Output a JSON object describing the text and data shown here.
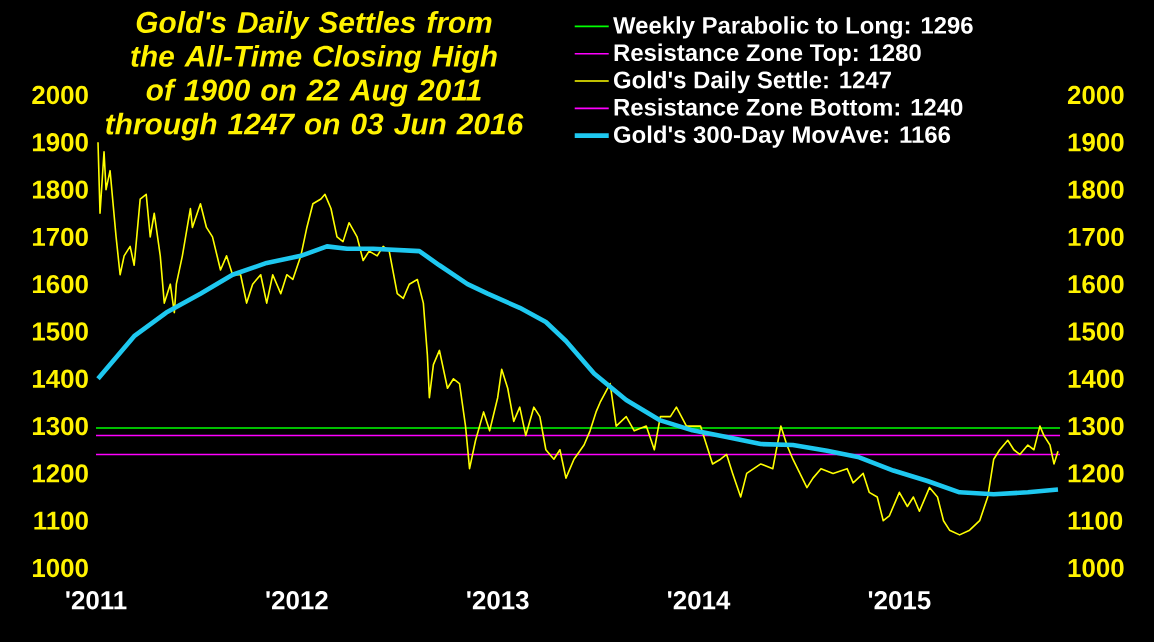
{
  "chart_data": {
    "type": "line",
    "title": "Gold's Daily Settles from the All-Time Closing High of 1900 on 22 Aug 2011 through 1247 on 03 Jun 2016",
    "xlim": [
      2011,
      2015.8
    ],
    "xticks": [
      {
        "value": 2011,
        "label": "'2011"
      },
      {
        "value": 2012,
        "label": "'2012"
      },
      {
        "value": 2013,
        "label": "'2013"
      },
      {
        "value": 2014,
        "label": "'2014"
      },
      {
        "value": 2015,
        "label": "'2015"
      }
    ],
    "ylim": [
      1000,
      2000
    ],
    "yticks": [
      1000,
      1100,
      1200,
      1300,
      1400,
      1500,
      1600,
      1700,
      1800,
      1900,
      2000
    ],
    "y2lim": [
      1000,
      2000
    ],
    "y2ticks": [
      1000,
      1100,
      1200,
      1300,
      1400,
      1500,
      1600,
      1700,
      1800,
      1900,
      2000
    ],
    "legend": "top right",
    "ref_lines": [
      {
        "axis": "y",
        "value": 1296,
        "label": "Weekly Parabolic to Long:  1296",
        "color": "#00ff00"
      },
      {
        "axis": "y",
        "value": 1280,
        "label": "Resistance Zone Top:  1280",
        "color": "#ff00ff"
      },
      {
        "axis": "y",
        "value": 1240,
        "label": "Resistance Zone Bottom:  1240",
        "color": "#ff00ff"
      }
    ],
    "series": [
      {
        "name": "Gold's Daily Settle:  1247",
        "color": "#ffff00",
        "x": [
          2011.01,
          2011.02,
          2011.04,
          2011.05,
          2011.07,
          2011.1,
          2011.12,
          2011.14,
          2011.17,
          2011.19,
          2011.22,
          2011.25,
          2011.27,
          2011.29,
          2011.32,
          2011.34,
          2011.37,
          2011.39,
          2011.4,
          2011.43,
          2011.47,
          2011.48,
          2011.52,
          2011.55,
          2011.58,
          2011.62,
          2011.65,
          2011.68,
          2011.72,
          2011.75,
          2011.78,
          2011.82,
          2011.85,
          2011.88,
          2011.92,
          2011.95,
          2011.98,
          2012.02,
          2012.05,
          2012.08,
          2012.12,
          2012.14,
          2012.17,
          2012.2,
          2012.23,
          2012.26,
          2012.3,
          2012.33,
          2012.36,
          2012.4,
          2012.43,
          2012.46,
          2012.5,
          2012.53,
          2012.56,
          2012.6,
          2012.63,
          2012.65,
          2012.66,
          2012.68,
          2012.71,
          2012.75,
          2012.78,
          2012.81,
          2012.84,
          2012.86,
          2012.89,
          2012.91,
          2012.93,
          2012.96,
          2013.0,
          2013.02,
          2013.05,
          2013.08,
          2013.11,
          2013.14,
          2013.18,
          2013.21,
          2013.24,
          2013.28,
          2013.31,
          2013.34,
          2013.38,
          2013.43,
          2013.46,
          2013.49,
          2013.51,
          2013.56,
          2013.59,
          2013.64,
          2013.68,
          2013.74,
          2013.78,
          2013.81,
          2013.86,
          2013.89,
          2013.94,
          2014.01,
          2014.04,
          2014.07,
          2014.11,
          2014.14,
          2014.17,
          2014.21,
          2014.24,
          2014.31,
          2014.37,
          2014.41,
          2014.44,
          2014.47,
          2014.54,
          2014.57,
          2014.61,
          2014.67,
          2014.74,
          2014.77,
          2014.82,
          2014.85,
          2014.89,
          2014.92,
          2014.95,
          2015.0,
          2015.04,
          2015.07,
          2015.1,
          2015.15,
          2015.19,
          2015.22,
          2015.25,
          2015.3,
          2015.35,
          2015.4,
          2015.44,
          2015.47,
          2015.5,
          2015.54,
          2015.57,
          2015.6,
          2015.64,
          2015.67,
          2015.7,
          2015.72,
          2015.75,
          2015.77,
          2015.79
        ],
        "values": [
          1900,
          1750,
          1880,
          1800,
          1840,
          1700,
          1620,
          1660,
          1680,
          1640,
          1780,
          1790,
          1700,
          1750,
          1660,
          1560,
          1600,
          1540,
          1600,
          1660,
          1760,
          1720,
          1770,
          1720,
          1700,
          1630,
          1660,
          1620,
          1620,
          1560,
          1600,
          1620,
          1560,
          1620,
          1580,
          1620,
          1610,
          1660,
          1720,
          1770,
          1780,
          1790,
          1760,
          1700,
          1690,
          1730,
          1700,
          1650,
          1670,
          1660,
          1680,
          1670,
          1580,
          1570,
          1600,
          1610,
          1560,
          1450,
          1360,
          1430,
          1460,
          1380,
          1400,
          1390,
          1300,
          1210,
          1270,
          1300,
          1330,
          1290,
          1360,
          1420,
          1380,
          1310,
          1340,
          1280,
          1340,
          1320,
          1250,
          1230,
          1250,
          1190,
          1230,
          1260,
          1290,
          1330,
          1350,
          1390,
          1300,
          1320,
          1290,
          1300,
          1250,
          1320,
          1320,
          1340,
          1300,
          1300,
          1260,
          1220,
          1230,
          1240,
          1200,
          1150,
          1200,
          1220,
          1210,
          1300,
          1260,
          1230,
          1170,
          1190,
          1210,
          1200,
          1210,
          1180,
          1200,
          1160,
          1150,
          1100,
          1110,
          1160,
          1130,
          1150,
          1120,
          1170,
          1150,
          1100,
          1080,
          1070,
          1080,
          1100,
          1150,
          1230,
          1250,
          1270,
          1250,
          1240,
          1260,
          1250,
          1300,
          1280,
          1260,
          1220,
          1247
        ]
      },
      {
        "name": "Gold's 300-Day MovAve:  1166",
        "color": "#1ec8f0",
        "x": [
          2011.01,
          2011.19,
          2011.35,
          2011.52,
          2011.68,
          2011.85,
          2012.02,
          2012.15,
          2012.25,
          2012.38,
          2012.61,
          2012.71,
          2012.85,
          2012.95,
          2013.11,
          2013.24,
          2013.34,
          2013.48,
          2013.64,
          2013.81,
          2013.97,
          2014.14,
          2014.31,
          2014.47,
          2014.64,
          2014.8,
          2014.97,
          2015.14,
          2015.3,
          2015.47,
          2015.64,
          2015.79
        ],
        "values": [
          1400,
          1490,
          1540,
          1580,
          1620,
          1645,
          1660,
          1680,
          1675,
          1675,
          1670,
          1640,
          1600,
          1580,
          1550,
          1520,
          1480,
          1411,
          1355,
          1312,
          1291,
          1277,
          1262,
          1260,
          1248,
          1234,
          1206,
          1184,
          1160,
          1156,
          1160,
          1166
        ]
      }
    ]
  }
}
